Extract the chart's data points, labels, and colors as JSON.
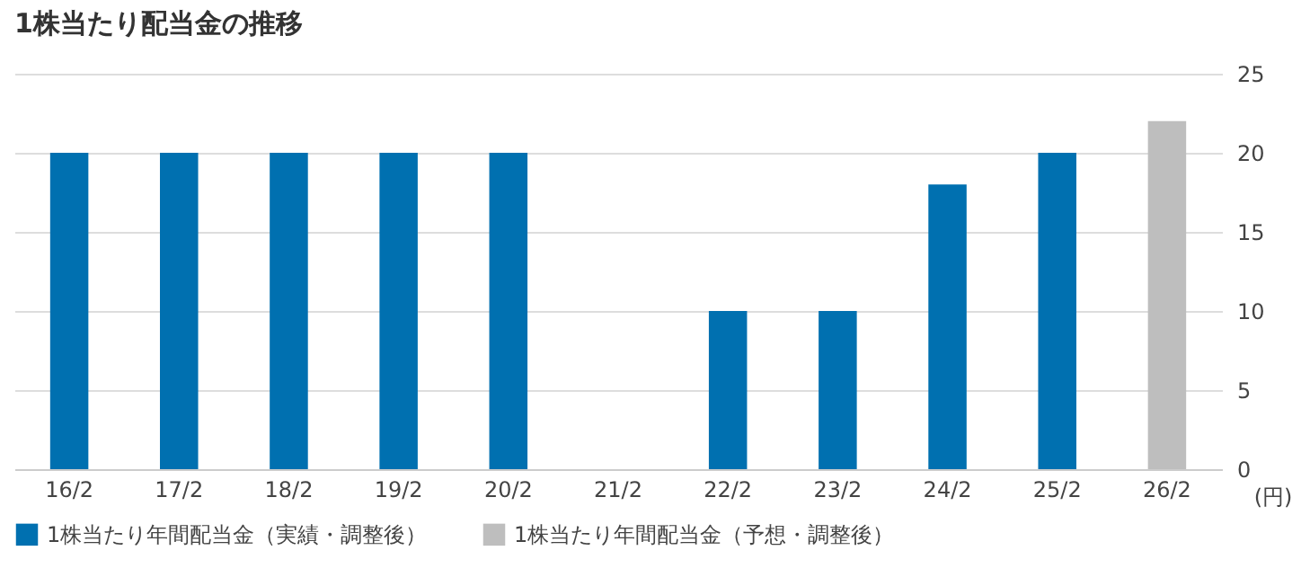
{
  "chart_data": {
    "type": "bar",
    "title": "1株当たり配当金の推移",
    "ylabel": "(円)",
    "categories": [
      "16/2",
      "17/2",
      "18/2",
      "19/2",
      "20/2",
      "21/2",
      "22/2",
      "23/2",
      "24/2",
      "25/2",
      "26/2"
    ],
    "series": [
      {
        "name": "1株当たり年間配当金（実績・調整後）",
        "color": "#0070b0",
        "values": [
          20,
          20,
          20,
          20,
          20,
          0,
          10,
          10,
          18,
          20,
          null
        ]
      },
      {
        "name": "1株当たり年間配当金（予想・調整後）",
        "color": "#bebebe",
        "values": [
          null,
          null,
          null,
          null,
          null,
          null,
          null,
          null,
          null,
          null,
          22
        ]
      }
    ],
    "ylim": [
      0,
      25
    ],
    "yticks": [
      0,
      5,
      10,
      15,
      20,
      25
    ],
    "grid": "y",
    "legend": "bottom"
  }
}
